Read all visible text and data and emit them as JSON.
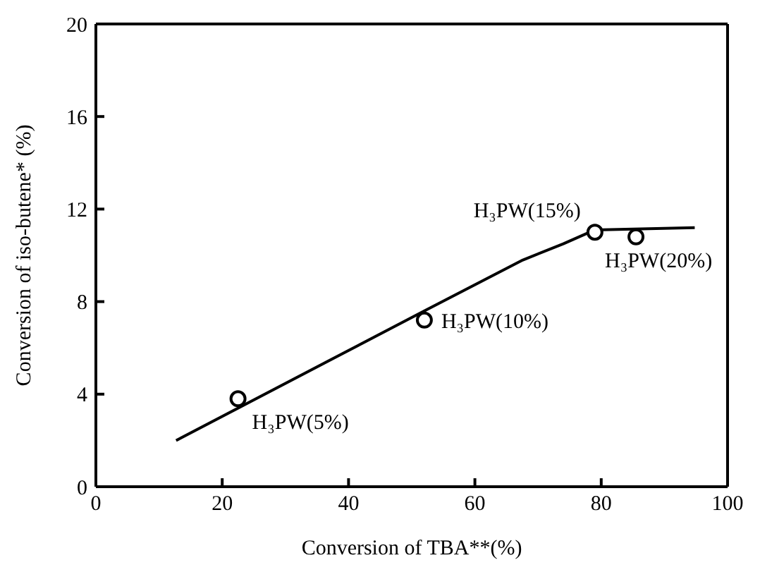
{
  "chart_data": {
    "type": "scatter",
    "xlabel": "Conversion of TBA**(%)",
    "ylabel": "Conversion of iso-butene* (%)",
    "series": [
      {
        "color": "#000000",
        "marker": "circle",
        "x": [
          22.5,
          52,
          79,
          85.5
        ],
        "values": [
          3.8,
          7.2,
          11.0,
          10.8
        ]
      },
      {
        "type": "line",
        "color": "#000000",
        "marker": "none",
        "line_style": "solid",
        "x": [
          12.7,
          52,
          67.6,
          74,
          79,
          94.8
        ],
        "values": [
          2.0,
          7.6,
          9.8,
          10.5,
          11.1,
          11.2
        ]
      }
    ],
    "annotations": [
      {
        "text": "H₃PW(5%)",
        "x": 22.5,
        "y": 3.8
      },
      {
        "text": "H₃PW(10%)",
        "x": 52,
        "y": 7.2
      },
      {
        "text": "H₃PW(15%)",
        "x": 79,
        "y": 11.0
      },
      {
        "text": "H₃PW(20%)",
        "x": 85.5,
        "y": 10.8
      }
    ],
    "xlim": [
      0,
      100
    ],
    "xticks": [
      0,
      20,
      40,
      60,
      80,
      100
    ],
    "ylim": [
      0,
      20
    ],
    "yticks": [
      0,
      4,
      8,
      12,
      16,
      20
    ]
  }
}
